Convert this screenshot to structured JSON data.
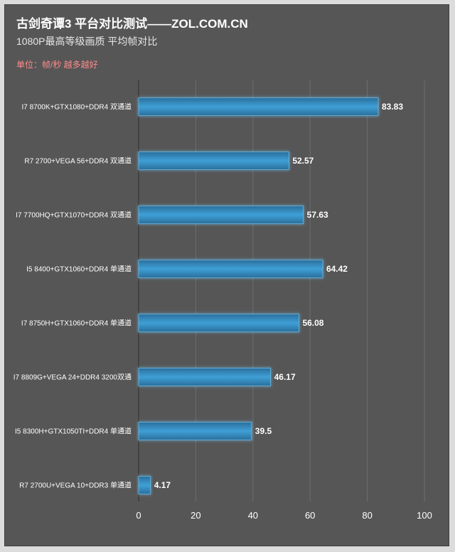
{
  "header": {
    "title": "古剑奇谭3 平台对比测试——ZOL.COM.CN",
    "subtitle": "1080P最高等级画质 平均帧对比",
    "unit_note": "单位：帧/秒  越多越好"
  },
  "colors": {
    "background": "#565656",
    "bar_edge": "#2a6f9c",
    "bar_center": "#3f9fd6",
    "bar_glow": "#6fc6f5",
    "unit_note": "#ff8a8a",
    "gridline": "#6e6e6e"
  },
  "chart_data": {
    "type": "bar",
    "orientation": "horizontal",
    "categories": [
      "I7 8700K+GTX1080+DDR4 双通道",
      "R7 2700+VEGA 56+DDR4 双通道",
      "I7 7700HQ+GTX1070+DDR4 双通道",
      "I5 8400+GTX1060+DDR4 单通道",
      "I7 8750H+GTX1060+DDR4 单通道",
      "I7 8809G+VEGA 24+DDR4 3200双通",
      "I5 8300H+GTX1050TI+DDR4 单通道",
      "R7 2700U+VEGA 10+DDR3 单通道"
    ],
    "values": [
      83.83,
      52.57,
      57.63,
      64.42,
      56.08,
      46.17,
      39.5,
      4.17
    ],
    "value_labels": [
      "83.83",
      "52.57",
      "57.63",
      "64.42",
      "56.08",
      "46.17",
      "39.5",
      "4.17"
    ],
    "xlim": [
      0,
      100
    ],
    "xticks": [
      "0",
      "20",
      "40",
      "60",
      "80",
      "100"
    ],
    "grid": true,
    "legend": false
  }
}
